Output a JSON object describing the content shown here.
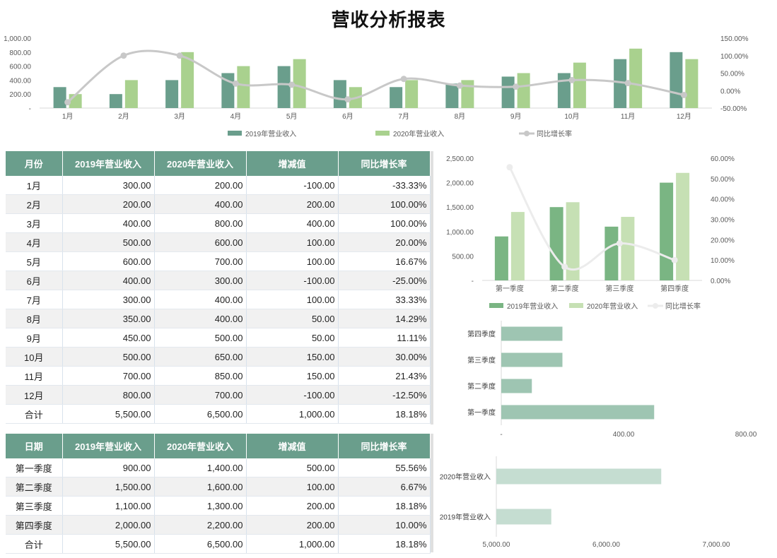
{
  "title": "营收分析报表",
  "colors": {
    "dark_green": "#6a9e8c",
    "light_green": "#a9d18e",
    "green2": "#7ab583",
    "green2_light": "#c6e0b4",
    "line_gray": "#c8c8c8",
    "line_light": "#ececec",
    "bar_sage": "#9ec5b2",
    "bar_sage_light": "#c5ddd1"
  },
  "monthly_table": {
    "headers": [
      "月份",
      "2019年营业收入",
      "2020年营业收入",
      "增减值",
      "同比增长率"
    ],
    "rows": [
      [
        "1月",
        "300.00",
        "200.00",
        "-100.00",
        "-33.33%"
      ],
      [
        "2月",
        "200.00",
        "400.00",
        "200.00",
        "100.00%"
      ],
      [
        "3月",
        "400.00",
        "800.00",
        "400.00",
        "100.00%"
      ],
      [
        "4月",
        "500.00",
        "600.00",
        "100.00",
        "20.00%"
      ],
      [
        "5月",
        "600.00",
        "700.00",
        "100.00",
        "16.67%"
      ],
      [
        "6月",
        "400.00",
        "300.00",
        "-100.00",
        "-25.00%"
      ],
      [
        "7月",
        "300.00",
        "400.00",
        "100.00",
        "33.33%"
      ],
      [
        "8月",
        "350.00",
        "400.00",
        "50.00",
        "14.29%"
      ],
      [
        "9月",
        "450.00",
        "500.00",
        "50.00",
        "11.11%"
      ],
      [
        "10月",
        "500.00",
        "650.00",
        "150.00",
        "30.00%"
      ],
      [
        "11月",
        "700.00",
        "850.00",
        "150.00",
        "21.43%"
      ],
      [
        "12月",
        "800.00",
        "700.00",
        "-100.00",
        "-12.50%"
      ],
      [
        "合计",
        "5,500.00",
        "6,500.00",
        "1,000.00",
        "18.18%"
      ]
    ]
  },
  "quarter_table": {
    "headers": [
      "日期",
      "2019年营业收入",
      "2020年营业收入",
      "增减值",
      "同比增长率"
    ],
    "rows": [
      [
        "第一季度",
        "900.00",
        "1,400.00",
        "500.00",
        "55.56%"
      ],
      [
        "第二季度",
        "1,500.00",
        "1,600.00",
        "100.00",
        "6.67%"
      ],
      [
        "第三季度",
        "1,100.00",
        "1,300.00",
        "200.00",
        "18.18%"
      ],
      [
        "第四季度",
        "2,000.00",
        "2,200.00",
        "200.00",
        "10.00%"
      ],
      [
        "合计",
        "5,500.00",
        "6,500.00",
        "1,000.00",
        "18.18%"
      ]
    ]
  },
  "chart_data": [
    {
      "id": "monthly",
      "type": "bar",
      "categories": [
        "1月",
        "2月",
        "3月",
        "4月",
        "5月",
        "6月",
        "7月",
        "8月",
        "9月",
        "10月",
        "11月",
        "12月"
      ],
      "series": [
        {
          "name": "2019年营业收入",
          "type": "bar",
          "values": [
            300,
            200,
            400,
            500,
            600,
            400,
            300,
            350,
            450,
            500,
            700,
            800
          ]
        },
        {
          "name": "2020年营业收入",
          "type": "bar",
          "values": [
            200,
            400,
            800,
            600,
            700,
            300,
            400,
            400,
            500,
            650,
            850,
            700
          ]
        },
        {
          "name": "同比增长率",
          "type": "line",
          "axis": "right",
          "values": [
            -33.33,
            100,
            100,
            20,
            16.67,
            -25,
            33.33,
            14.29,
            11.11,
            30,
            21.43,
            -12.5
          ]
        }
      ],
      "ylim": [
        0,
        1000
      ],
      "yticks": [
        "-",
        "200.00",
        "400.00",
        "600.00",
        "800.00",
        "1,000.00"
      ],
      "y2lim": [
        -50,
        150
      ],
      "y2ticks": [
        "-50.00%",
        "0.00%",
        "50.00%",
        "100.00%",
        "150.00%"
      ],
      "legend": "bottom"
    },
    {
      "id": "quarterly",
      "type": "bar",
      "categories": [
        "第一季度",
        "第二季度",
        "第三季度",
        "第四季度"
      ],
      "series": [
        {
          "name": "2019年营业收入",
          "type": "bar",
          "values": [
            900,
            1500,
            1100,
            2000
          ]
        },
        {
          "name": "2020年营业收入",
          "type": "bar",
          "values": [
            1400,
            1600,
            1300,
            2200
          ]
        },
        {
          "name": "同比增长率",
          "type": "line",
          "axis": "right",
          "values": [
            55.56,
            6.67,
            18.18,
            10
          ]
        }
      ],
      "ylim": [
        0,
        2500
      ],
      "yticks": [
        "-",
        "500.00",
        "1,000.00",
        "1,500.00",
        "2,000.00",
        "2,500.00"
      ],
      "y2lim": [
        0,
        60
      ],
      "y2ticks": [
        "0.00%",
        "10.00%",
        "20.00%",
        "30.00%",
        "40.00%",
        "50.00%",
        "60.00%"
      ],
      "legend": "bottom"
    },
    {
      "id": "quarter_increase",
      "type": "bar",
      "orientation": "horizontal",
      "categories": [
        "第一季度",
        "第二季度",
        "第三季度",
        "第四季度"
      ],
      "values": [
        500,
        100,
        200,
        200
      ],
      "xlim": [
        0,
        800
      ],
      "xticks": [
        "-",
        "400.00",
        "800.00"
      ]
    },
    {
      "id": "annual_total",
      "type": "bar",
      "orientation": "horizontal",
      "categories": [
        "2019年营业收入",
        "2020年营业收入"
      ],
      "values": [
        5500,
        6500
      ],
      "xlim": [
        5000,
        7000
      ],
      "xticks": [
        "5,000.00",
        "6,000.00",
        "7,000.00"
      ]
    }
  ]
}
